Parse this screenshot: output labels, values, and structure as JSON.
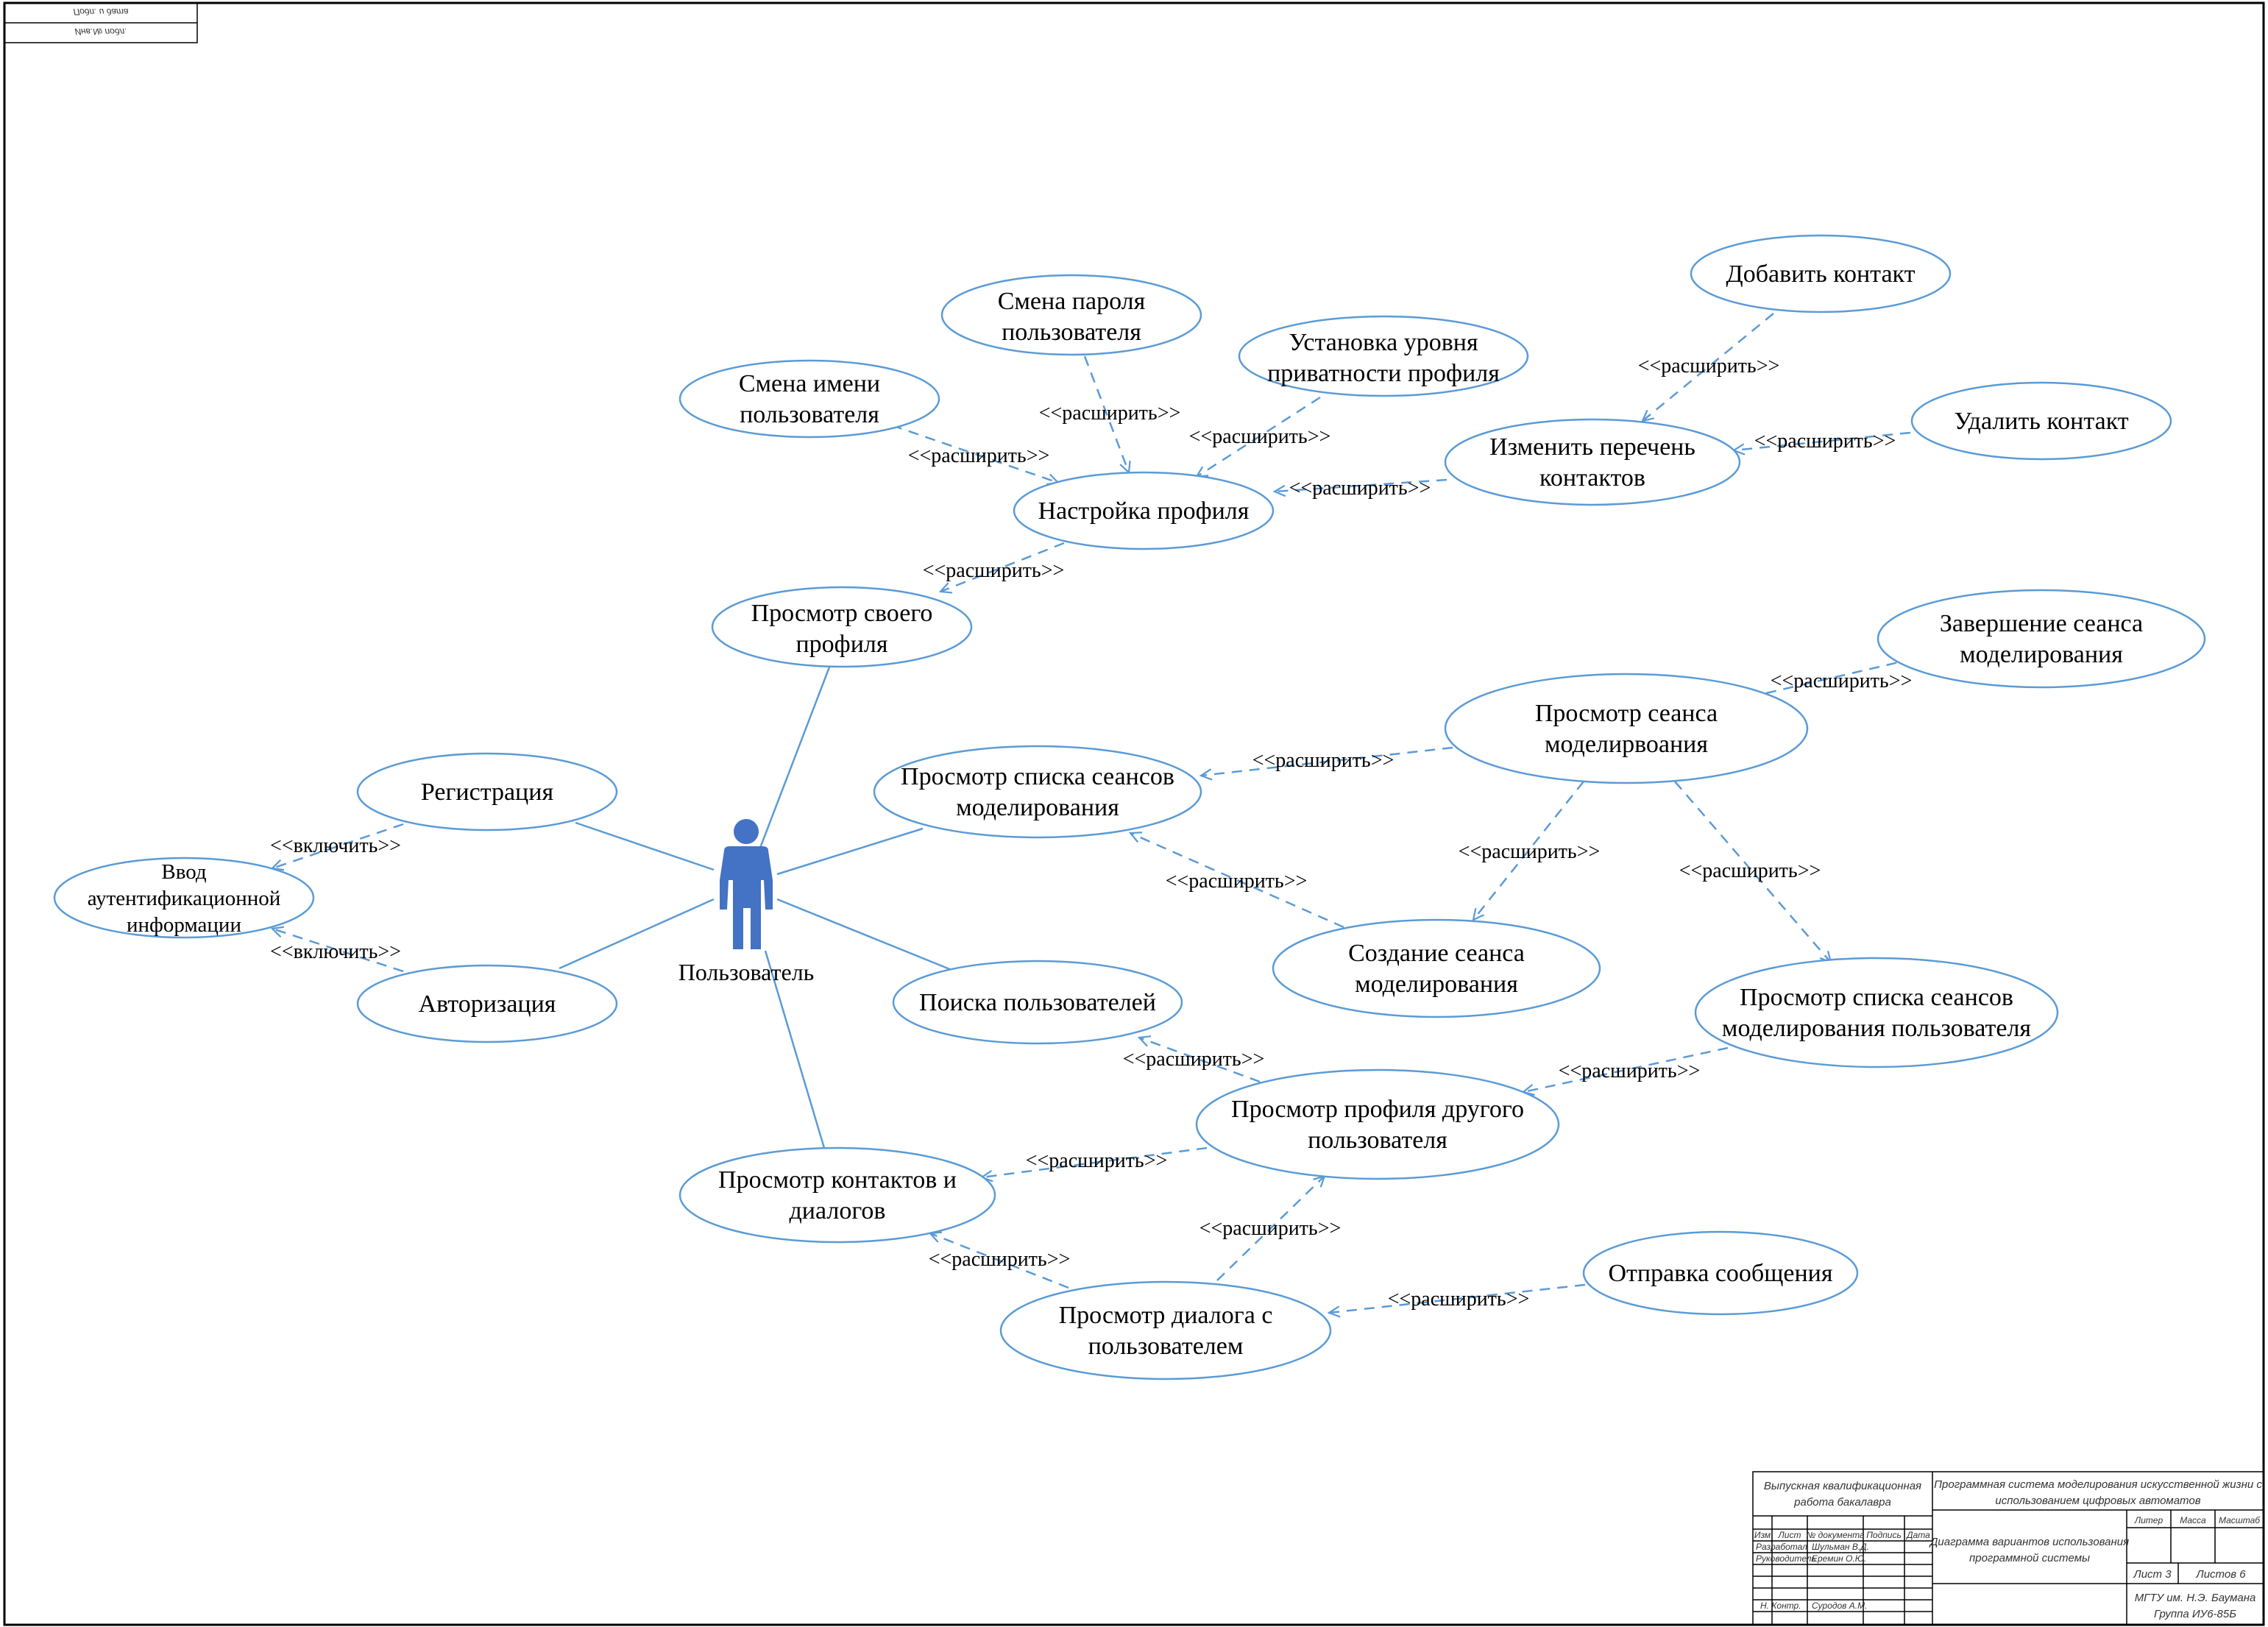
{
  "stamp": {
    "line1": "Инв.№ подл.",
    "line2": "Подп. и дата"
  },
  "actor": {
    "label": "Пользователь",
    "color": "#4472c4"
  },
  "use_cases": {
    "registration": [
      "Регистрация"
    ],
    "auth_input": [
      "Ввод",
      "аутентификационной",
      "информации"
    ],
    "authorization": [
      "Авторизация"
    ],
    "own_profile": [
      "Просмотр своего",
      "профиля"
    ],
    "profile_settings": [
      "Настройка профиля"
    ],
    "change_name": [
      "Смена имени",
      "пользователя"
    ],
    "change_password": [
      "Смена пароля",
      "пользователя"
    ],
    "privacy": [
      "Установка уровня",
      "приватности профиля"
    ],
    "edit_contacts": [
      "Изменить перечень",
      "контактов"
    ],
    "add_contact": [
      "Добавить контакт"
    ],
    "delete_contact": [
      "Удалить контакт"
    ],
    "session_list": [
      "Просмотр списка сеансов",
      "моделирования"
    ],
    "view_session": [
      "Просмотр сеанса",
      "моделирвоания"
    ],
    "end_session": [
      "Завершение сеанса",
      "моделирования"
    ],
    "create_session": [
      "Создание сеанса",
      "моделирования"
    ],
    "user_session_list": [
      "Просмотр списка сеансов",
      "моделирования пользователя"
    ],
    "search_users": [
      "Поиска пользователей"
    ],
    "other_profile": [
      "Просмотр профиля другого",
      "пользователя"
    ],
    "contacts_dialogs": [
      "Просмотр контактов и",
      "диалогов"
    ],
    "dialog": [
      "Просмотр диалога с",
      "пользователем"
    ],
    "send_message": [
      "Отправка сообщения"
    ]
  },
  "relations": {
    "extend": "<<расширить>>",
    "include": "<<включить>>"
  },
  "title_block": {
    "work_type": [
      "Выпускная квалификационная",
      "работа бакалавра"
    ],
    "system_title": [
      "Программная система моделирования искусственной жизни с",
      "использованием цифровых автоматов"
    ],
    "sheet_title": [
      "Диаграмма вариантов использования",
      "программной системы"
    ],
    "col_headers": [
      "Изм",
      "Лист",
      "№ документа",
      "Подпись",
      "Дата"
    ],
    "developer_role": "Разработал",
    "developer_name": "Шульман В.Д.",
    "supervisor_role": "Руководитель",
    "supervisor_name": "Еремин О.Ю.",
    "norm_role": "Н. Контр.",
    "norm_name": "Суродов А.М.",
    "litera": "Литер",
    "mass": "Масса",
    "scale": "Масштаб",
    "sheet": "Лист 3",
    "sheets": "Листов 6",
    "org": [
      "МГТУ им. Н.Э. Баумана",
      "Группа ИУ6-85Б"
    ]
  }
}
